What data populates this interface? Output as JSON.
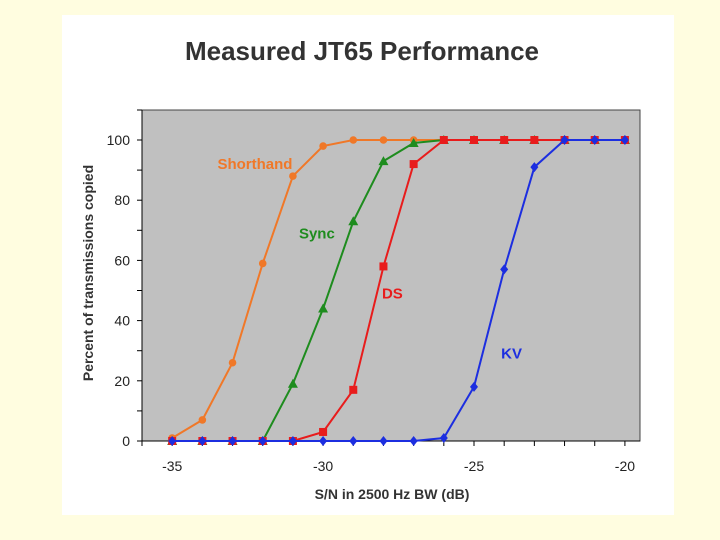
{
  "chart_data": {
    "type": "line",
    "title": "Measured JT65 Performance",
    "xlabel": "S/N in 2500 Hz BW (dB)",
    "ylabel": "Percent of transmissions copied",
    "xlim": [
      -36,
      -19.5
    ],
    "ylim": [
      0,
      100
    ],
    "x_ticks": [
      -35,
      -30,
      -25,
      -20
    ],
    "y_ticks": [
      0,
      20,
      40,
      60,
      80,
      100
    ],
    "grid": false,
    "plot_background": "#c0c0c0",
    "series": [
      {
        "name": "Shorthand",
        "color": "#f07828",
        "marker": "circle",
        "x": [
          -35,
          -34,
          -33,
          -32,
          -31,
          -30,
          -29,
          -28,
          -27,
          -26,
          -25,
          -24,
          -23,
          -22,
          -21,
          -20
        ],
        "y": [
          1,
          7,
          26,
          59,
          88,
          98,
          100,
          100,
          100,
          100,
          100,
          100,
          100,
          100,
          100,
          100
        ]
      },
      {
        "name": "Sync",
        "color": "#1e8c1e",
        "marker": "triangle",
        "x": [
          -35,
          -34,
          -33,
          -32,
          -31,
          -30,
          -29,
          -28,
          -27,
          -26,
          -25,
          -24,
          -23,
          -22,
          -21,
          -20
        ],
        "y": [
          0,
          0,
          0,
          0,
          19,
          44,
          73,
          93,
          99,
          100,
          100,
          100,
          100,
          100,
          100,
          100
        ]
      },
      {
        "name": "DS",
        "color": "#e81c1c",
        "marker": "square",
        "x": [
          -35,
          -34,
          -33,
          -32,
          -31,
          -30,
          -29,
          -28,
          -27,
          -26,
          -25,
          -24,
          -23,
          -22,
          -21,
          -20
        ],
        "y": [
          0,
          0,
          0,
          0,
          0,
          3,
          17,
          58,
          92,
          100,
          100,
          100,
          100,
          100,
          100,
          100
        ]
      },
      {
        "name": "KV",
        "color": "#1c2ee0",
        "marker": "diamond",
        "x": [
          -35,
          -34,
          -33,
          -32,
          -31,
          -30,
          -29,
          -28,
          -27,
          -26,
          -25,
          -24,
          -23,
          -22,
          -21,
          -20
        ],
        "y": [
          0,
          0,
          0,
          0,
          0,
          0,
          0,
          0,
          0,
          1,
          18,
          57,
          91,
          100,
          100,
          100
        ]
      }
    ],
    "annotations": [
      {
        "text": "Shorthand",
        "series": "Shorthand",
        "color": "#f07828",
        "x": -33.5,
        "y": 92
      },
      {
        "text": "Sync",
        "series": "Sync",
        "color": "#1e8c1e",
        "x": -30.8,
        "y": 69
      },
      {
        "text": "DS",
        "series": "DS",
        "color": "#e81c1c",
        "x": -28.05,
        "y": 49
      },
      {
        "text": "KV",
        "series": "KV",
        "color": "#1c2ee0",
        "x": -24.1,
        "y": 29
      }
    ]
  }
}
